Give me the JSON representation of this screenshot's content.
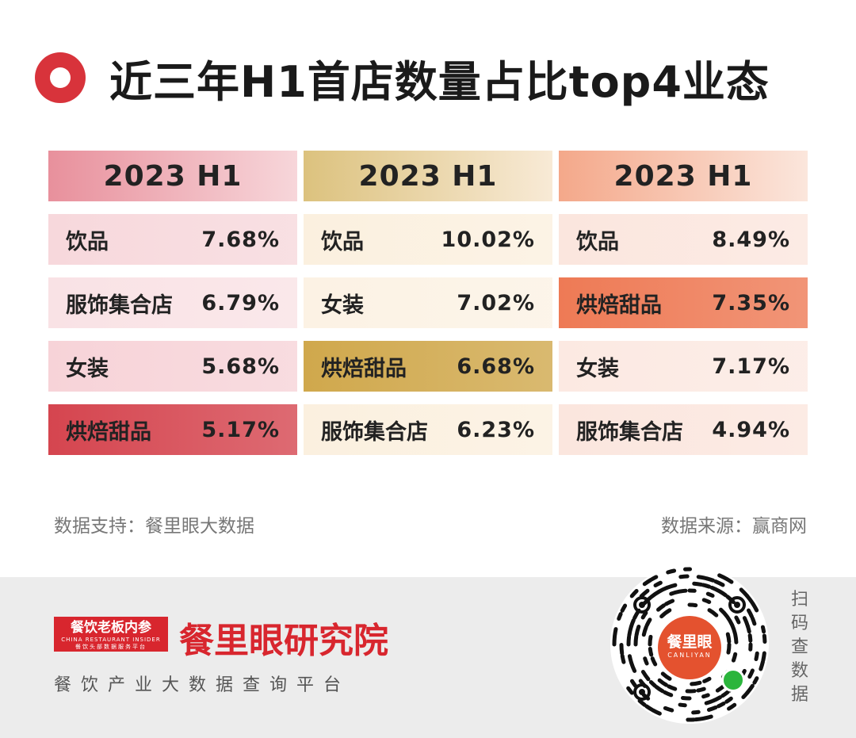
{
  "title": "近三年H1首店数量占比top4业态",
  "chart_data": {
    "type": "table",
    "title": "近三年H1首店数量占比top4业态",
    "columns": [
      {
        "header": "2023 H1",
        "rows": [
          {
            "name": "饮品",
            "value": "7.68%"
          },
          {
            "name": "服饰集合店",
            "value": "6.79%"
          },
          {
            "name": "女装",
            "value": "5.68%"
          },
          {
            "name": "烘焙甜品",
            "value": "5.17%"
          }
        ]
      },
      {
        "header": "2023 H1",
        "rows": [
          {
            "name": "饮品",
            "value": "10.02%"
          },
          {
            "name": "女装",
            "value": "7.02%"
          },
          {
            "name": "烘焙甜品",
            "value": "6.68%"
          },
          {
            "name": "服饰集合店",
            "value": "6.23%"
          }
        ]
      },
      {
        "header": "2023 H1",
        "rows": [
          {
            "name": "饮品",
            "value": "8.49%"
          },
          {
            "name": "烘焙甜品",
            "value": "7.35%"
          },
          {
            "name": "女装",
            "value": "7.17%"
          },
          {
            "name": "服饰集合店",
            "value": "4.94%"
          }
        ]
      }
    ]
  },
  "palette": {
    "col1_header": [
      "#e8909c",
      "#f7d6da"
    ],
    "col1_cells": [
      "#f7d8dc",
      "#f9e2e5",
      "#f7d3d8",
      "#d5454f"
    ],
    "col2_header": [
      "#dcc27e",
      "#f8ead6"
    ],
    "col2_cells": [
      "#fbf0df",
      "#fcf2e4",
      "#d0a84c",
      "#fbf0df"
    ],
    "col3_header": [
      "#f4a88a",
      "#fbe6dc"
    ],
    "col3_cells": [
      "#fbe6de",
      "#ee7a55",
      "#fce9e2",
      "#fbe6de"
    ]
  },
  "notes": {
    "support": "数据支持：餐里眼大数据",
    "source": "数据来源：赢商网"
  },
  "footer": {
    "brand_small": "餐饮老板内参",
    "brand_small_en": "CHINA RESTAURANT INSIDER",
    "brand_small_sub": "餐饮头部数据服务平台",
    "brand_main": "餐里眼研究院",
    "tagline": "餐饮产业大数据查询平台",
    "qr_badge": "餐里眼",
    "qr_badge_en": "CANLIYAN",
    "scan_chars": [
      "扫",
      "码",
      "查",
      "数",
      "据"
    ]
  }
}
